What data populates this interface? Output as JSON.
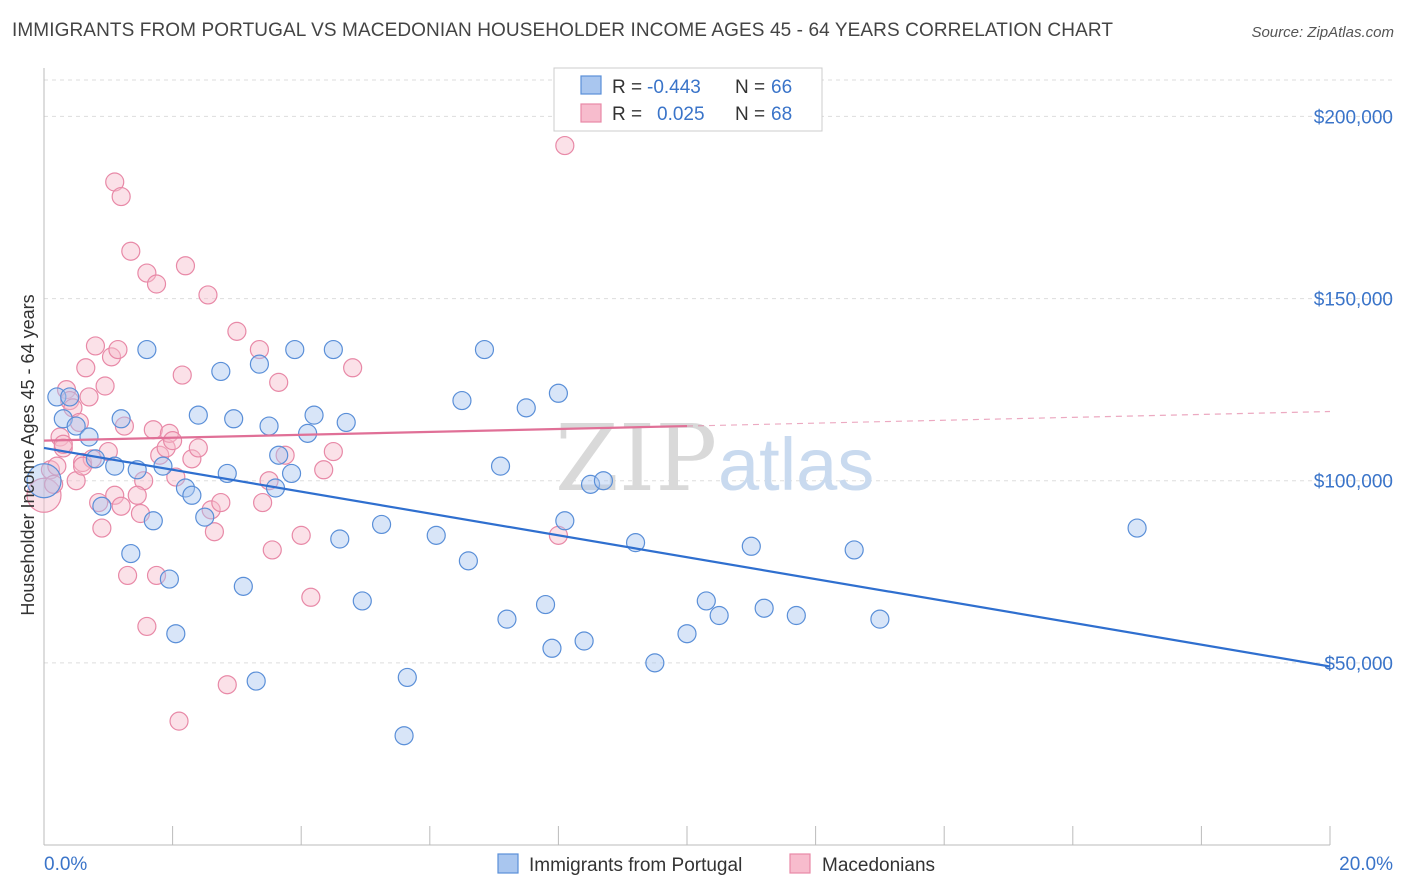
{
  "title": "IMMIGRANTS FROM PORTUGAL VS MACEDONIAN HOUSEHOLDER INCOME AGES 45 - 64 YEARS CORRELATION CHART",
  "source": "Source: ZipAtlas.com",
  "watermark": {
    "part1": "ZIP",
    "part2": "atlas"
  },
  "colors": {
    "blue_fill": "#a9c6ef",
    "blue_stroke": "#5a8fd8",
    "blue_line": "#2f6fcf",
    "pink_fill": "#f7bccd",
    "pink_stroke": "#e889a7",
    "pink_line": "#e07097",
    "axis_text": "#3a74c9",
    "grid": "#dddddd"
  },
  "stats": {
    "r_label": "R =",
    "n_label": "N =",
    "rows": [
      {
        "series": "Immigrants from Portugal",
        "r": "-0.443",
        "n": "66"
      },
      {
        "series": "Macedonians",
        "r": "0.025",
        "n": "68"
      }
    ]
  },
  "chart_data": {
    "type": "scatter",
    "title": "IMMIGRANTS FROM PORTUGAL VS MACEDONIAN HOUSEHOLDER INCOME AGES 45 - 64 YEARS CORRELATION CHART",
    "xlabel": "",
    "ylabel": "Householder Income Ages 45 - 64 years",
    "xlim": [
      0,
      20
    ],
    "ylim": [
      0,
      210000
    ],
    "x_tick_labels": [
      "0.0%",
      "20.0%"
    ],
    "y_ticks": [
      50000,
      100000,
      150000,
      200000
    ],
    "y_tick_labels": [
      "$50,000",
      "$100,000",
      "$150,000",
      "$200,000"
    ],
    "grid": true,
    "legend_position": "bottom-center",
    "series": [
      {
        "name": "Immigrants from Portugal",
        "trend": {
          "x": [
            0,
            20
          ],
          "y": [
            109000,
            49000
          ]
        },
        "points": [
          [
            0.0,
            100000
          ],
          [
            0.2,
            123000
          ],
          [
            0.3,
            117000
          ],
          [
            0.4,
            123000
          ],
          [
            0.5,
            115000
          ],
          [
            0.7,
            112000
          ],
          [
            0.8,
            106000
          ],
          [
            0.9,
            93000
          ],
          [
            1.1,
            104000
          ],
          [
            1.2,
            117000
          ],
          [
            1.35,
            80000
          ],
          [
            1.45,
            103000
          ],
          [
            1.6,
            136000
          ],
          [
            1.7,
            89000
          ],
          [
            1.85,
            104000
          ],
          [
            1.95,
            73000
          ],
          [
            2.05,
            58000
          ],
          [
            2.2,
            98000
          ],
          [
            2.3,
            96000
          ],
          [
            2.4,
            118000
          ],
          [
            2.5,
            90000
          ],
          [
            2.75,
            130000
          ],
          [
            2.85,
            102000
          ],
          [
            2.95,
            117000
          ],
          [
            3.1,
            71000
          ],
          [
            3.3,
            45000
          ],
          [
            3.35,
            132000
          ],
          [
            3.5,
            115000
          ],
          [
            3.6,
            98000
          ],
          [
            3.65,
            107000
          ],
          [
            3.85,
            102000
          ],
          [
            3.9,
            136000
          ],
          [
            4.1,
            113000
          ],
          [
            4.2,
            118000
          ],
          [
            4.5,
            136000
          ],
          [
            4.6,
            84000
          ],
          [
            4.7,
            116000
          ],
          [
            4.95,
            67000
          ],
          [
            5.25,
            88000
          ],
          [
            5.6,
            30000
          ],
          [
            5.65,
            46000
          ],
          [
            6.1,
            85000
          ],
          [
            6.5,
            122000
          ],
          [
            6.6,
            78000
          ],
          [
            6.85,
            136000
          ],
          [
            7.1,
            104000
          ],
          [
            7.2,
            62000
          ],
          [
            7.5,
            120000
          ],
          [
            7.8,
            66000
          ],
          [
            7.9,
            54000
          ],
          [
            8.0,
            124000
          ],
          [
            8.1,
            89000
          ],
          [
            8.4,
            56000
          ],
          [
            8.5,
            99000
          ],
          [
            8.7,
            100000
          ],
          [
            9.2,
            83000
          ],
          [
            9.5,
            50000
          ],
          [
            10.0,
            58000
          ],
          [
            10.3,
            67000
          ],
          [
            10.5,
            63000
          ],
          [
            11.0,
            82000
          ],
          [
            11.2,
            65000
          ],
          [
            11.7,
            63000
          ],
          [
            12.6,
            81000
          ],
          [
            13.0,
            62000
          ],
          [
            17.0,
            87000
          ]
        ]
      },
      {
        "name": "Macedonians",
        "trend": {
          "x": [
            0,
            10
          ],
          "y": [
            111000,
            115000
          ]
        },
        "trend_extension": {
          "x": [
            10,
            20
          ],
          "y": [
            115000,
            119000
          ]
        },
        "points": [
          [
            0.0,
            96000
          ],
          [
            0.1,
            103000
          ],
          [
            0.15,
            99000
          ],
          [
            0.2,
            104000
          ],
          [
            0.25,
            112000
          ],
          [
            0.3,
            109000
          ],
          [
            0.35,
            125000
          ],
          [
            0.4,
            122000
          ],
          [
            0.45,
            120000
          ],
          [
            0.5,
            100000
          ],
          [
            0.55,
            116000
          ],
          [
            0.6,
            105000
          ],
          [
            0.65,
            131000
          ],
          [
            0.7,
            123000
          ],
          [
            0.75,
            106000
          ],
          [
            0.8,
            137000
          ],
          [
            0.85,
            94000
          ],
          [
            0.9,
            87000
          ],
          [
            0.95,
            126000
          ],
          [
            1.0,
            108000
          ],
          [
            1.05,
            134000
          ],
          [
            1.1,
            96000
          ],
          [
            1.15,
            136000
          ],
          [
            1.2,
            93000
          ],
          [
            1.25,
            115000
          ],
          [
            1.3,
            74000
          ],
          [
            1.35,
            163000
          ],
          [
            1.5,
            91000
          ],
          [
            1.55,
            100000
          ],
          [
            1.6,
            157000
          ],
          [
            1.6,
            60000
          ],
          [
            1.7,
            114000
          ],
          [
            1.75,
            154000
          ],
          [
            1.75,
            74000
          ],
          [
            1.8,
            107000
          ],
          [
            1.9,
            109000
          ],
          [
            1.95,
            113000
          ],
          [
            2.0,
            111000
          ],
          [
            2.05,
            101000
          ],
          [
            2.1,
            34000
          ],
          [
            2.15,
            129000
          ],
          [
            2.2,
            159000
          ],
          [
            2.3,
            106000
          ],
          [
            2.55,
            151000
          ],
          [
            2.6,
            92000
          ],
          [
            2.65,
            86000
          ],
          [
            2.75,
            94000
          ],
          [
            2.85,
            44000
          ],
          [
            3.0,
            141000
          ],
          [
            3.35,
            136000
          ],
          [
            3.4,
            94000
          ],
          [
            3.5,
            100000
          ],
          [
            3.55,
            81000
          ],
          [
            3.65,
            127000
          ],
          [
            3.75,
            107000
          ],
          [
            4.0,
            85000
          ],
          [
            4.15,
            68000
          ],
          [
            4.35,
            103000
          ],
          [
            4.5,
            108000
          ],
          [
            4.8,
            131000
          ],
          [
            1.1,
            182000
          ],
          [
            1.2,
            178000
          ],
          [
            0.6,
            104000
          ],
          [
            0.3,
            110000
          ],
          [
            2.4,
            109000
          ],
          [
            1.45,
            96000
          ],
          [
            8.0,
            85000
          ],
          [
            8.1,
            192000
          ]
        ]
      }
    ]
  },
  "legend": {
    "items": [
      {
        "label": "Immigrants from Portugal"
      },
      {
        "label": "Macedonians"
      }
    ]
  }
}
